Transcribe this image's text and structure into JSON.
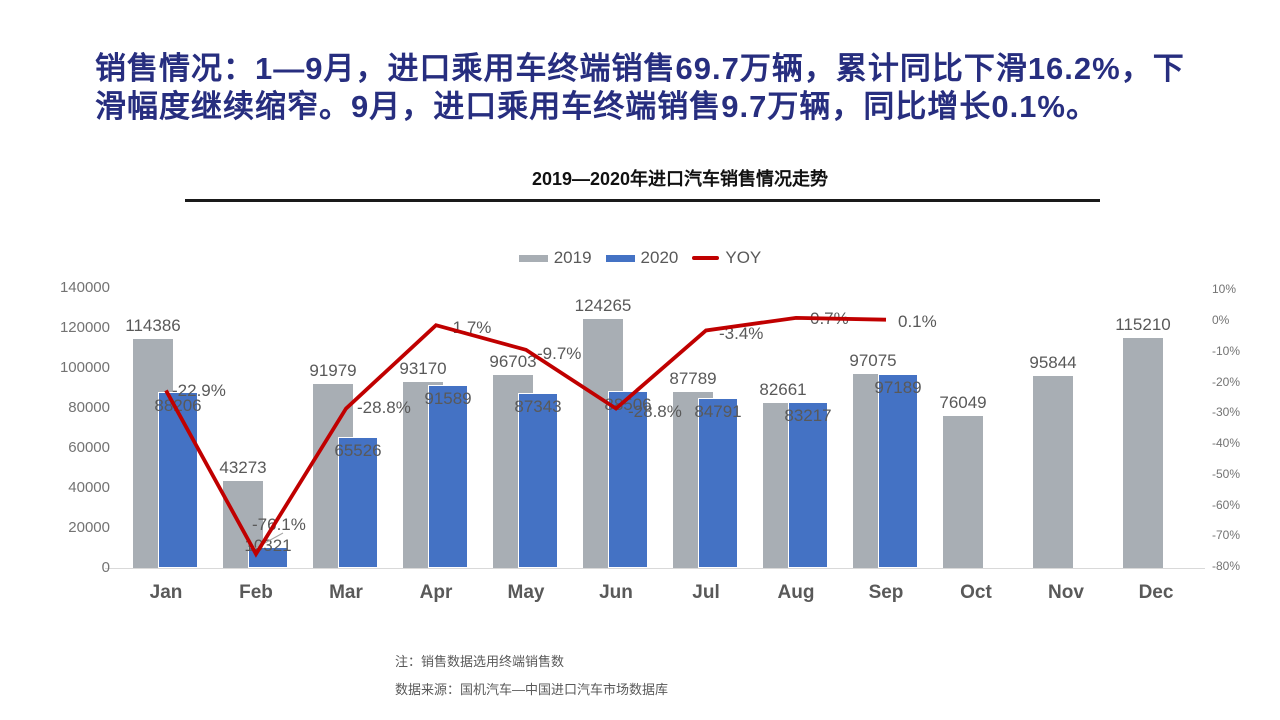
{
  "header": {
    "line1": "销售情况：1—9月，进口乘用车终端销售69.7万辆，累计同比下滑16.2%，下",
    "line2": "滑幅度继续缩窄。9月，进口乘用车终端销售9.7万辆，同比增长0.1%。"
  },
  "chart": {
    "title": "2019—2020年进口汽车销售情况走势"
  },
  "chart_data": {
    "type": "bar",
    "title": "2019—2020年进口汽车销售情况走势",
    "categories": [
      "Jan",
      "Feb",
      "Mar",
      "Apr",
      "May",
      "Jun",
      "Jul",
      "Aug",
      "Sep",
      "Oct",
      "Nov",
      "Dec"
    ],
    "series": [
      {
        "name": "2019",
        "type": "bar",
        "color": "#A8AEB4",
        "values": [
          114386,
          43273,
          91979,
          93170,
          96703,
          124265,
          87789,
          82661,
          97075,
          76049,
          95844,
          115210
        ]
      },
      {
        "name": "2020",
        "type": "bar",
        "color": "#4472C4",
        "values": [
          88206,
          10321,
          65526,
          91589,
          87343,
          88506,
          84791,
          83217,
          97189,
          null,
          null,
          null
        ]
      },
      {
        "name": "YOY",
        "type": "line",
        "color": "#C00000",
        "axis": "right",
        "values": [
          -22.9,
          -76.1,
          -28.8,
          -1.7,
          -9.7,
          -28.8,
          -3.4,
          0.7,
          0.1,
          null,
          null,
          null
        ],
        "labels": [
          "-22.9%",
          "-76.1%",
          "-28.8%",
          "-1.7%",
          "-9.7%",
          "-28.8%",
          "-3.4%",
          "0.7%",
          "0.1%"
        ]
      }
    ],
    "left_axis": {
      "min": 0,
      "max": 140000,
      "ticks": [
        "0",
        "20000",
        "40000",
        "60000",
        "80000",
        "100000",
        "120000",
        "140000"
      ]
    },
    "right_axis": {
      "min": -80,
      "max": 10,
      "ticks": [
        "10%",
        "0%",
        "-10%",
        "-20%",
        "-30%",
        "-40%",
        "-50%",
        "-60%",
        "-70%",
        "-80%"
      ]
    },
    "legend": [
      "2019",
      "2020",
      "YOY"
    ],
    "legend_position": "top",
    "grid": false
  },
  "notes": {
    "line1": "注：销售数据选用终端销售数",
    "line2": "数据来源：国机汽车—中国进口汽车市场数据库"
  },
  "colors": {
    "header_text": "#272E7F",
    "bar_2019": "#A8AEB4",
    "bar_2020": "#4472C4",
    "yoy_line": "#C00000",
    "axis_text": "#737373",
    "label_text": "#595959"
  }
}
